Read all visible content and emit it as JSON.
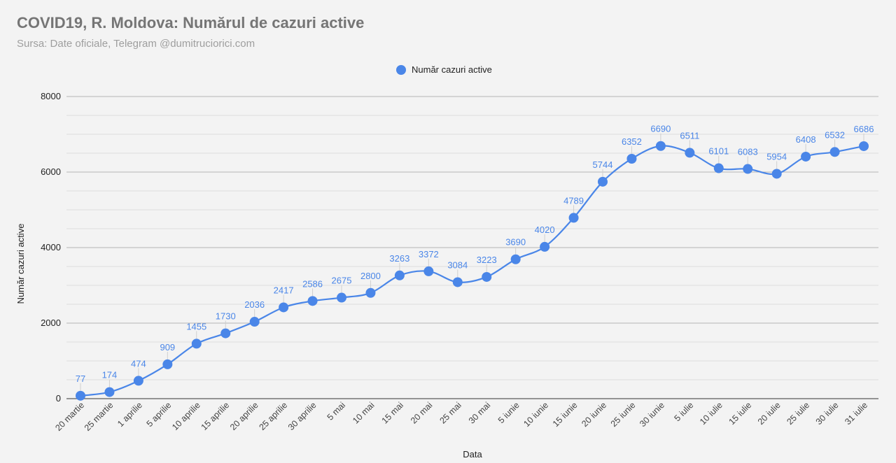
{
  "chart_data": {
    "type": "line",
    "title": "COVID19, R. Moldova: Numărul de cazuri active",
    "subtitle": "Sursa: Date oficiale, Telegram @dumitruciorici.com",
    "xlabel": "Data",
    "ylabel": "Număr cazuri active",
    "ylim": [
      0,
      8000
    ],
    "yticks": [
      0,
      2000,
      4000,
      6000,
      8000
    ],
    "grid": true,
    "legend_position": "top-center",
    "categories": [
      "20 martie",
      "25 martie",
      "1 aprilie",
      "5 aprilie",
      "10 aprilie",
      "15 aprilie",
      "20 aprilie",
      "25 aprilie",
      "30 aprilie",
      "5 mai",
      "10 mai",
      "15 mai",
      "20 mai",
      "25 mai",
      "30 mai",
      "5 iunie",
      "10 iunie",
      "15 iunie",
      "20 iunie",
      "25 iunie",
      "30 iunie",
      "5 iulie",
      "10 iulie",
      "15 iulie",
      "20 iulie",
      "25 iulie",
      "30 iulie",
      "31 iulie"
    ],
    "series": [
      {
        "name": "Număr cazuri active",
        "color": "#4a86e8",
        "values": [
          77,
          174,
          474,
          909,
          1455,
          1730,
          2036,
          2417,
          2586,
          2675,
          2800,
          3263,
          3372,
          3084,
          3223,
          3690,
          4020,
          4789,
          5744,
          6352,
          6690,
          6511,
          6101,
          6083,
          5954,
          6408,
          6532,
          6686
        ]
      }
    ]
  }
}
